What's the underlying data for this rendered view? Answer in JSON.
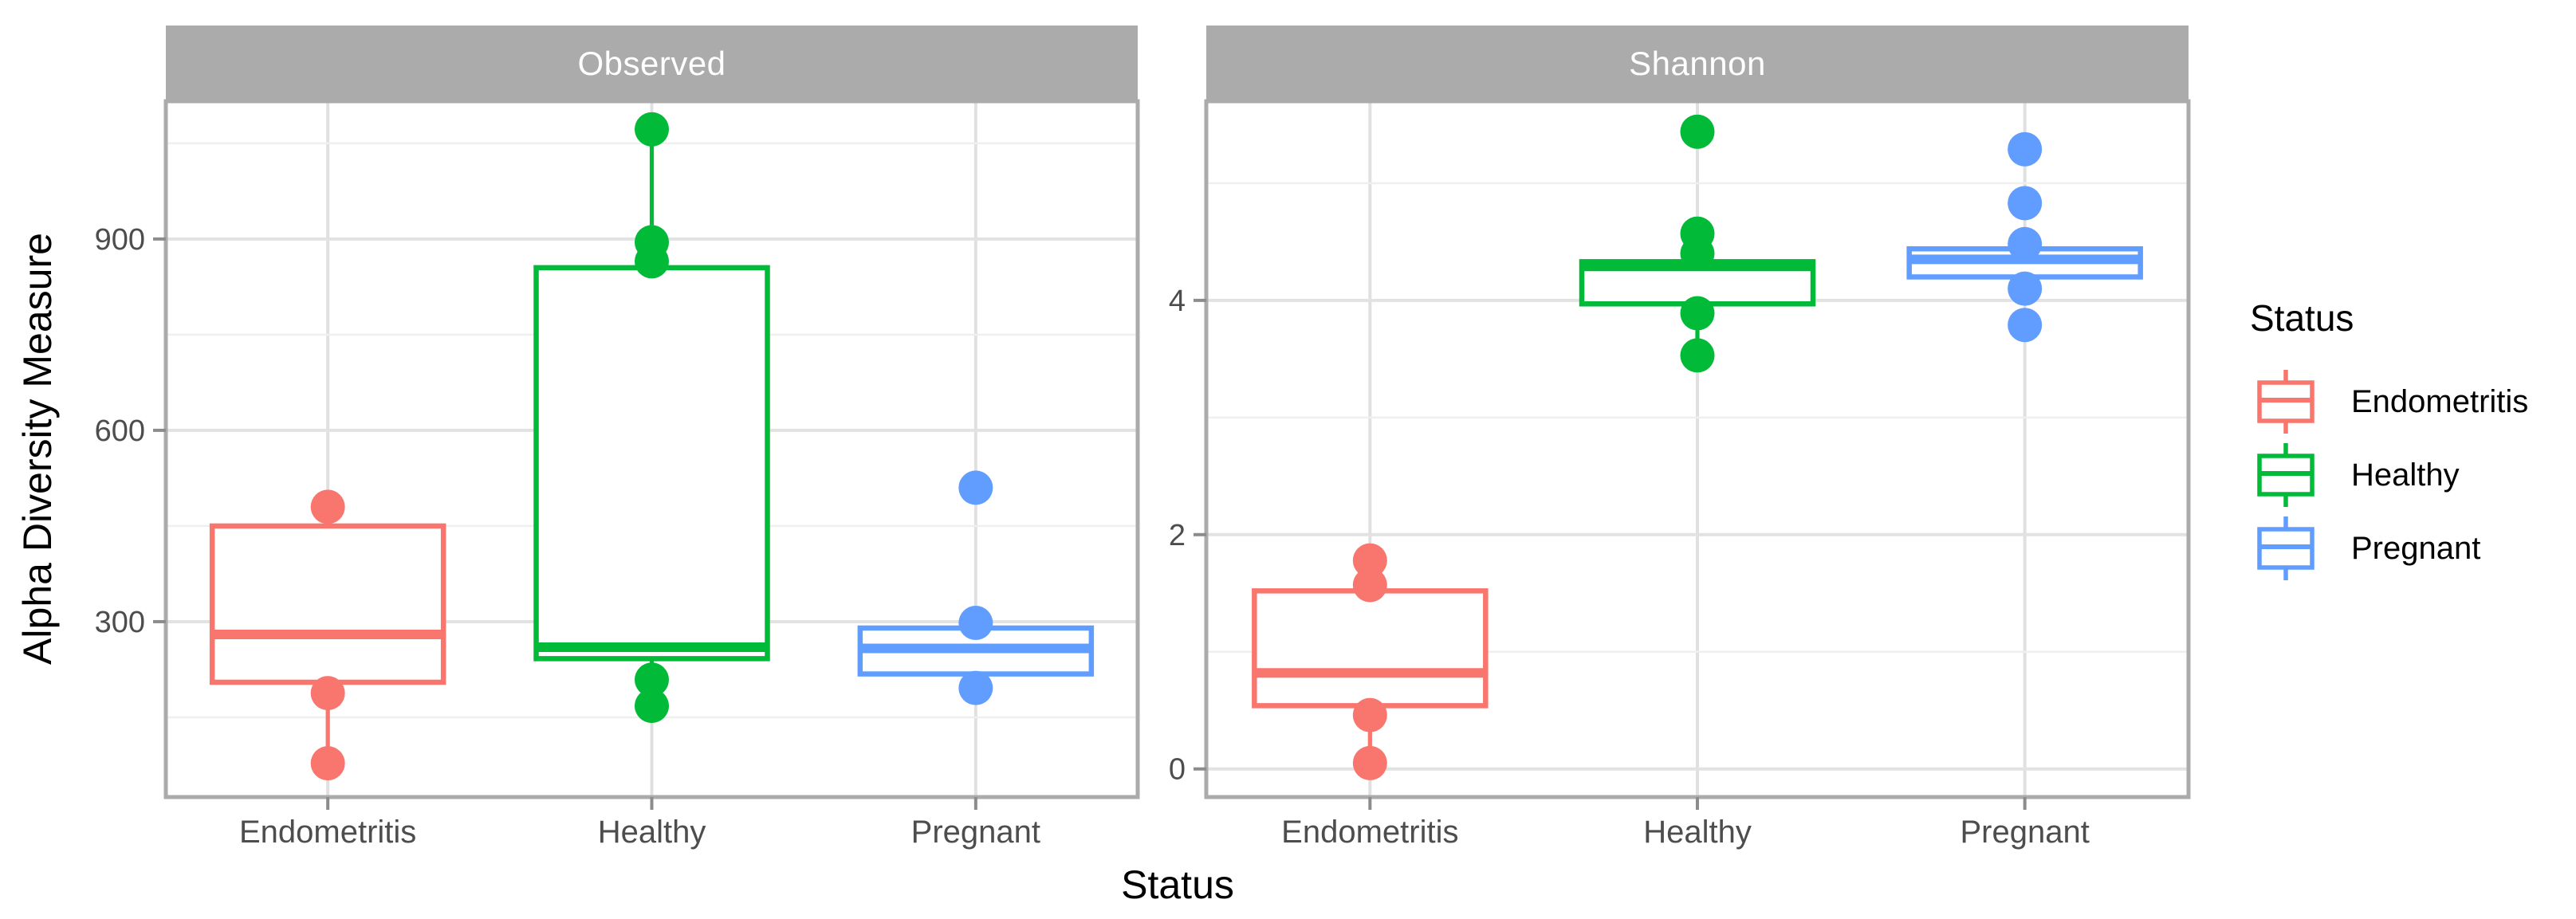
{
  "legend": {
    "title": "Status",
    "items": [
      {
        "label": "Endometritis",
        "color": "#F8766D"
      },
      {
        "label": "Healthy",
        "color": "#00BA38"
      },
      {
        "label": "Pregnant",
        "color": "#619CFF"
      }
    ]
  },
  "chart_data": {
    "type": "boxplot",
    "title": "",
    "xlabel": "Status",
    "ylabel": "Alpha Diversity Measure",
    "legend_title": "Status",
    "legend_position": "right",
    "grid": true,
    "categories": [
      "Endometritis",
      "Healthy",
      "Pregnant"
    ],
    "series_colors": {
      "Endometritis": "#F8766D",
      "Healthy": "#00BA38",
      "Pregnant": "#619CFF"
    },
    "facets": [
      {
        "label": "Observed",
        "ylim": [
          25,
          1116
        ],
        "yticks_major": [
          300,
          600,
          900
        ],
        "yticks_minor": [
          150,
          450,
          750,
          1050
        ],
        "boxes": [
          {
            "category": "Endometritis",
            "q1": 205,
            "median": 280,
            "q3": 450,
            "whisker_low": 78,
            "whisker_high": 480,
            "points": [
              480,
              188,
              78
            ]
          },
          {
            "category": "Healthy",
            "q1": 242,
            "median": 260,
            "q3": 855,
            "whisker_low": 168,
            "whisker_high": 1072,
            "points": [
              1072,
              895,
              865,
              209,
              168
            ]
          },
          {
            "category": "Pregnant",
            "q1": 218,
            "median": 258,
            "q3": 290,
            "whisker_low": 196,
            "whisker_high": 298,
            "points": [
              510,
              298,
              196
            ]
          }
        ]
      },
      {
        "label": "Shannon",
        "ylim": [
          -0.24,
          5.7
        ],
        "yticks_major": [
          0,
          2,
          4
        ],
        "yticks_minor": [
          1,
          3,
          5
        ],
        "boxes": [
          {
            "category": "Endometritis",
            "q1": 0.54,
            "median": 0.82,
            "q3": 1.52,
            "whisker_low": 0.05,
            "whisker_high": 1.78,
            "points": [
              1.78,
              1.57,
              0.46,
              0.05
            ]
          },
          {
            "category": "Healthy",
            "q1": 3.97,
            "median": 4.29,
            "q3": 4.33,
            "whisker_low": 3.53,
            "whisker_high": 4.57,
            "points": [
              5.44,
              4.57,
              4.4,
              3.89,
              3.53
            ]
          },
          {
            "category": "Pregnant",
            "q1": 4.2,
            "median": 4.35,
            "q3": 4.44,
            "whisker_low": 4.1,
            "whisker_high": 4.48,
            "points": [
              5.29,
              4.83,
              4.48,
              4.1,
              3.79
            ]
          }
        ]
      }
    ]
  }
}
